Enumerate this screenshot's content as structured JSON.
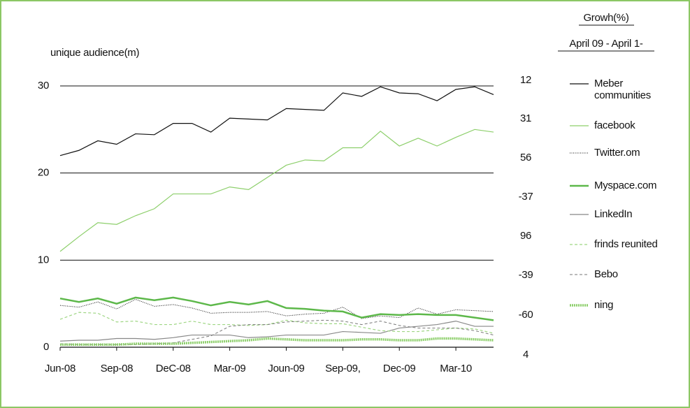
{
  "chart_data": {
    "type": "line",
    "y_label": "unique audience(m)",
    "growth_title": "Growh(%)",
    "growth_subtitle": "April 09 - April 1-",
    "categories": [
      "Jun-08",
      null,
      null,
      "Sep-08",
      null,
      null,
      "DeC-08",
      null,
      null,
      "Mar-09",
      null,
      null,
      "Joun-09",
      null,
      null,
      "Sep-09,",
      null,
      null,
      "Dec-09",
      null,
      null,
      "Mar-10",
      null,
      null
    ],
    "ylim": [
      0,
      30
    ],
    "yticks": [
      0,
      10,
      20,
      30
    ],
    "grid": true,
    "growth": [
      12,
      31,
      56,
      -37,
      96,
      -39,
      -60,
      4
    ],
    "series": [
      {
        "name": "Meber communities",
        "color": "#111111",
        "width": 1.2,
        "dash": "none",
        "values": [
          22.0,
          22.6,
          23.7,
          23.3,
          24.5,
          24.4,
          25.7,
          25.7,
          24.7,
          26.3,
          26.2,
          26.1,
          27.4,
          27.3,
          27.2,
          29.2,
          28.8,
          29.9,
          29.2,
          29.1,
          28.3,
          29.6,
          29.9,
          29.0
        ]
      },
      {
        "name": "facebook",
        "color": "#8dcf6b",
        "width": 1.2,
        "dash": "none",
        "values": [
          11.0,
          12.7,
          14.3,
          14.1,
          15.1,
          15.9,
          17.6,
          17.6,
          17.6,
          18.4,
          18.1,
          19.5,
          20.9,
          21.5,
          21.4,
          22.9,
          22.9,
          24.8,
          23.1,
          24.0,
          23.1,
          24.1,
          25.0,
          24.7
        ]
      },
      {
        "name": "Twitter.om",
        "color": "#111111",
        "width": 1,
        "dash": "1,1.5",
        "values": [
          4.8,
          4.6,
          5.2,
          4.4,
          5.5,
          4.7,
          4.9,
          4.5,
          3.9,
          4.0,
          4.0,
          4.1,
          3.6,
          3.8,
          3.9,
          4.6,
          3.3,
          3.6,
          3.4,
          4.5,
          3.8,
          4.3,
          4.2,
          4.1
        ]
      },
      {
        "name": "Myspace.com",
        "color": "#5db84a",
        "width": 2.5,
        "dash": "none",
        "values": [
          5.6,
          5.2,
          5.6,
          5.0,
          5.7,
          5.4,
          5.7,
          5.3,
          4.8,
          5.2,
          4.9,
          5.3,
          4.5,
          4.4,
          4.2,
          4.1,
          3.4,
          3.8,
          3.7,
          3.8,
          3.7,
          3.7,
          3.4,
          3.1
        ]
      },
      {
        "name": "LinkedIn",
        "color": "#888888",
        "width": 1.2,
        "dash": "none",
        "values": [
          0.7,
          0.8,
          0.8,
          1.0,
          1.0,
          0.9,
          1.1,
          1.4,
          1.4,
          1.4,
          1.1,
          1.2,
          1.4,
          1.4,
          1.4,
          1.8,
          1.7,
          1.6,
          2.2,
          2.4,
          2.6,
          3.0,
          2.4,
          2.4
        ]
      },
      {
        "name": "frinds reunited",
        "color": "#9fd684",
        "width": 1.2,
        "dash": "4,3",
        "values": [
          3.2,
          4.0,
          3.9,
          2.9,
          3.0,
          2.6,
          2.6,
          3.0,
          2.6,
          2.6,
          2.5,
          2.6,
          3.1,
          2.8,
          2.7,
          2.7,
          2.3,
          1.9,
          1.8,
          1.8,
          2.0,
          2.2,
          2.1,
          1.6
        ]
      },
      {
        "name": "Bebo",
        "color": "#777777",
        "width": 1,
        "dash": "4,3",
        "values": [
          0.4,
          0.3,
          0.3,
          0.3,
          0.3,
          0.4,
          0.5,
          0.9,
          1.3,
          2.4,
          2.6,
          2.6,
          2.9,
          3.0,
          3.1,
          3.0,
          2.6,
          3.0,
          2.5,
          2.2,
          2.2,
          2.2,
          1.9,
          1.4
        ]
      },
      {
        "name": "ning",
        "color": "#8dcf6b",
        "width": 3.5,
        "dash": "2,1",
        "values": [
          0.3,
          0.3,
          0.3,
          0.3,
          0.4,
          0.4,
          0.4,
          0.5,
          0.6,
          0.7,
          0.8,
          1.0,
          0.9,
          0.8,
          0.8,
          0.8,
          0.9,
          0.9,
          0.8,
          0.8,
          1.0,
          1.0,
          0.9,
          0.8
        ]
      }
    ]
  }
}
